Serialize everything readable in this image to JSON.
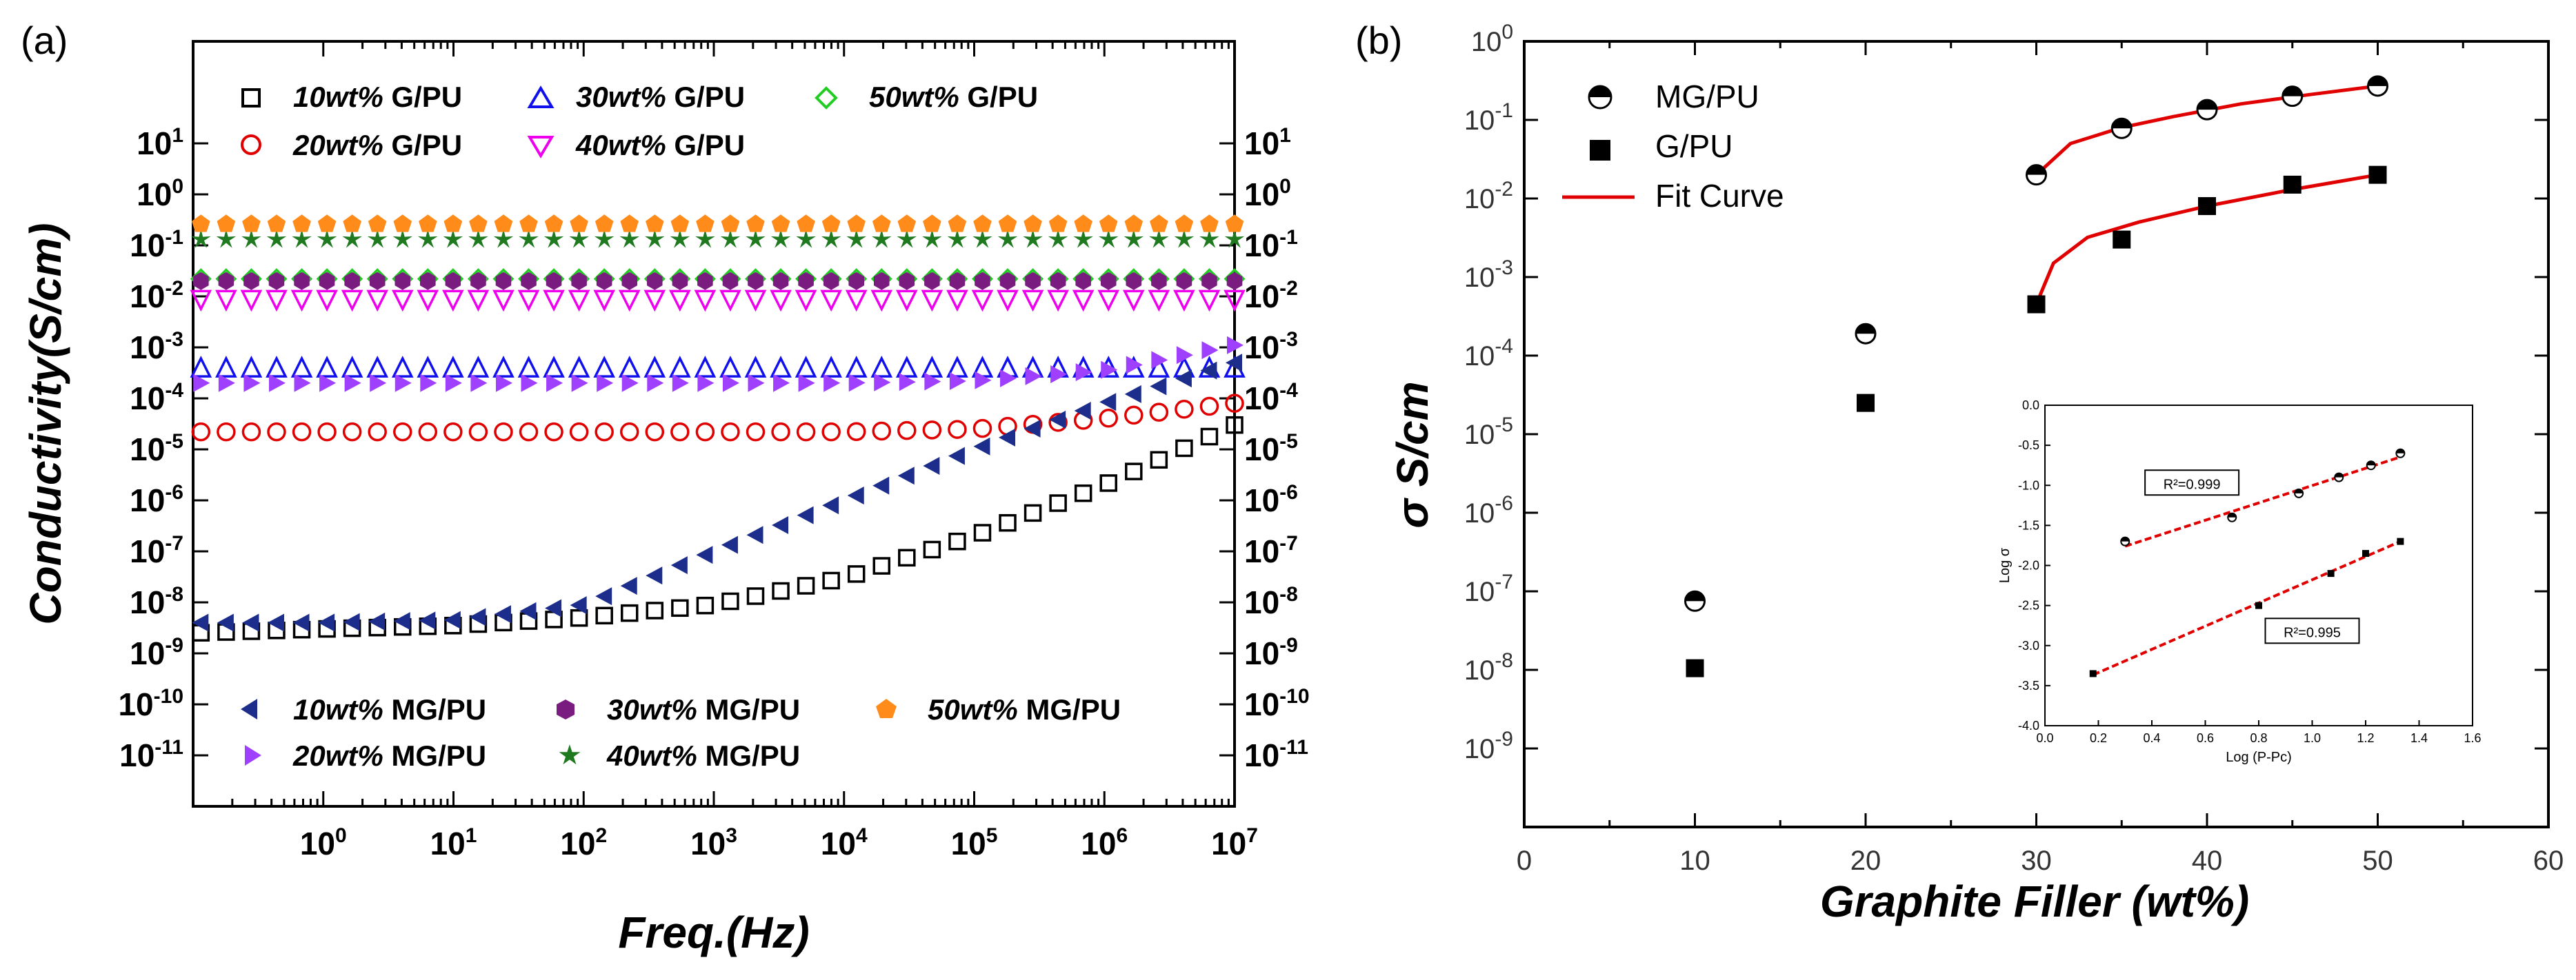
{
  "chart_data": [
    {
      "panel": "(a)",
      "type": "scatter",
      "xlabel": "Freq.(Hz)",
      "ylabel": "Conductivity(S/cm)",
      "xscale": "log",
      "yscale": "log",
      "xlim": [
        0.1,
        10000000
      ],
      "ylim": [
        1e-12,
        1000
      ],
      "xticks": [
        "10^0",
        "10^1",
        "10^2",
        "10^3",
        "10^4",
        "10^5",
        "10^6",
        "10^7"
      ],
      "yticks": [
        "10^-11",
        "10^-10",
        "10^-9",
        "10^-8",
        "10^-7",
        "10^-6",
        "10^-5",
        "10^-4",
        "10^-3",
        "10^-2",
        "10^-1",
        "10^0",
        "10^1"
      ],
      "series": [
        {
          "name": "10wt% G/PU",
          "marker": "open-square",
          "color": "#000000",
          "x": [
            0.1,
            1,
            10,
            100,
            1000,
            10000,
            100000,
            1000000,
            10000000
          ],
          "y": [
            2.5e-09,
            3e-09,
            3.5e-09,
            5e-09,
            9e-09,
            3e-08,
            2e-07,
            2e-06,
            3e-05
          ]
        },
        {
          "name": "20wt% G/PU",
          "marker": "open-circle",
          "color": "#e00000",
          "x": [
            0.1,
            1,
            10,
            100,
            1000,
            10000,
            100000,
            1000000,
            10000000
          ],
          "y": [
            2.2e-05,
            2.2e-05,
            2.2e-05,
            2.2e-05,
            2.2e-05,
            2.2e-05,
            2.5e-05,
            4e-05,
            8e-05
          ]
        },
        {
          "name": "30wt% G/PU",
          "marker": "open-triangle-up",
          "color": "#1010ee",
          "x": [
            0.1,
            1,
            10,
            100,
            1000,
            10000,
            100000,
            1000000,
            10000000
          ],
          "y": [
            0.00038,
            0.00038,
            0.00038,
            0.00038,
            0.00038,
            0.00038,
            0.00038,
            0.00038,
            0.00038
          ]
        },
        {
          "name": "40wt% G/PU",
          "marker": "open-triangle-down",
          "color": "#ee00ee",
          "x": [
            0.1,
            1,
            10,
            100,
            1000,
            10000,
            100000,
            1000000,
            10000000
          ],
          "y": [
            0.009,
            0.009,
            0.009,
            0.009,
            0.009,
            0.009,
            0.009,
            0.009,
            0.009
          ]
        },
        {
          "name": "50wt% G/PU",
          "marker": "open-diamond",
          "color": "#22cc22",
          "x": [
            0.1,
            1,
            10,
            100,
            1000,
            10000,
            100000,
            1000000,
            10000000
          ],
          "y": [
            0.022,
            0.022,
            0.022,
            0.022,
            0.022,
            0.022,
            0.022,
            0.022,
            0.022
          ]
        },
        {
          "name": "10wt% MG/PU",
          "marker": "filled-triangle-left",
          "color": "#1c2d8c",
          "x": [
            0.1,
            1,
            10,
            100,
            1000,
            10000,
            100000,
            1000000,
            10000000
          ],
          "y": [
            4e-09,
            4e-09,
            4.5e-09,
            9e-09,
            1e-07,
            1e-06,
            1e-05,
            8e-05,
            0.0005
          ]
        },
        {
          "name": "20wt% MG/PU",
          "marker": "filled-triangle-right",
          "color": "#a040ff",
          "x": [
            0.1,
            1,
            10,
            100,
            1000,
            10000,
            100000,
            1000000,
            10000000
          ],
          "y": [
            0.0002,
            0.0002,
            0.0002,
            0.0002,
            0.0002,
            0.0002,
            0.00022,
            0.00035,
            0.0011
          ]
        },
        {
          "name": "30wt% MG/PU",
          "marker": "filled-hexagon",
          "color": "#7a1b80",
          "x": [
            0.1,
            1,
            10,
            100,
            1000,
            10000,
            100000,
            1000000,
            10000000
          ],
          "y": [
            0.02,
            0.02,
            0.02,
            0.02,
            0.02,
            0.02,
            0.02,
            0.02,
            0.02
          ]
        },
        {
          "name": "40wt% MG/PU",
          "marker": "filled-star",
          "color": "#1f7a1f",
          "x": [
            0.1,
            1,
            10,
            100,
            1000,
            10000,
            100000,
            1000000,
            10000000
          ],
          "y": [
            0.13,
            0.13,
            0.13,
            0.13,
            0.13,
            0.13,
            0.13,
            0.13,
            0.13
          ]
        },
        {
          "name": "50wt% MG/PU",
          "marker": "filled-pentagon",
          "color": "#ff8c1a",
          "x": [
            0.1,
            1,
            10,
            100,
            1000,
            10000,
            100000,
            1000000,
            10000000
          ],
          "y": [
            0.26,
            0.26,
            0.26,
            0.26,
            0.26,
            0.26,
            0.26,
            0.26,
            0.26
          ]
        }
      ]
    },
    {
      "panel": "(b)",
      "type": "scatter",
      "xlabel": "Graphite Filler (wt%)",
      "ylabel": "σ S/cm",
      "yscale": "log",
      "xlim": [
        0,
        60
      ],
      "ylim": [
        1e-10,
        1
      ],
      "xticks": [
        "0",
        "10",
        "20",
        "30",
        "40",
        "50",
        "60"
      ],
      "yticks": [
        "10^-9",
        "10^-8",
        "10^-7",
        "10^-6",
        "10^-5",
        "10^-4",
        "10^-3",
        "10^-2",
        "10^-1",
        "10^0"
      ],
      "series": [
        {
          "name": "MG/PU",
          "marker": "half-filled-circle",
          "x": [
            10,
            20,
            30,
            35,
            40,
            45,
            50
          ],
          "y": [
            7.5e-08,
            0.00019,
            0.02,
            0.078,
            0.135,
            0.2,
            0.27
          ]
        },
        {
          "name": "G/PU",
          "marker": "filled-square",
          "x": [
            10,
            20,
            30,
            35,
            40,
            45,
            50
          ],
          "y": [
            1.05e-08,
            2.5e-05,
            0.00045,
            0.003,
            0.008,
            0.015,
            0.02
          ]
        },
        {
          "name": "Fit Curve",
          "marker": "line",
          "color": "#e00000",
          "fits": [
            {
              "x": [
                30,
                32,
                35,
                38,
                42,
                46,
                50
              ],
              "y": [
                0.02,
                0.05,
                0.08,
                0.11,
                0.16,
                0.21,
                0.27
              ]
            },
            {
              "x": [
                30,
                31,
                33,
                36,
                40,
                45,
                50
              ],
              "y": [
                0.00045,
                0.0015,
                0.0032,
                0.005,
                0.008,
                0.013,
                0.02
              ]
            }
          ]
        }
      ],
      "inset": {
        "xlabel": "Log (P-Pc)",
        "ylabel": "Log σ",
        "xlim": [
          0.0,
          1.6
        ],
        "ylim": [
          -4.0,
          0.0
        ],
        "xticks": [
          "0.0",
          "0.2",
          "0.4",
          "0.6",
          "0.8",
          "1.0",
          "1.2",
          "1.4",
          "1.6"
        ],
        "yticks": [
          "0.0",
          "-0.5",
          "-1.0",
          "-1.5",
          "-2.0",
          "-2.5",
          "-3.0",
          "-3.5",
          "-4.0"
        ],
        "annotations": [
          {
            "label": "R²=0.999",
            "at": "upper-line"
          },
          {
            "label": "R²=0.995",
            "at": "lower-line"
          }
        ],
        "series": [
          {
            "name": "MG/PU",
            "x": [
              0.3,
              0.7,
              0.95,
              1.1,
              1.22,
              1.33
            ],
            "y": [
              -1.7,
              -1.4,
              -1.1,
              -0.9,
              -0.75,
              -0.6
            ]
          },
          {
            "name": "G/PU",
            "x": [
              0.18,
              0.8,
              1.07,
              1.2,
              1.33
            ],
            "y": [
              -3.35,
              -2.5,
              -2.1,
              -1.85,
              -1.7
            ]
          }
        ]
      }
    }
  ],
  "labels": {
    "panel_a": "(a)",
    "panel_b": "(b)",
    "legend_a_top": [
      {
        "pct": "10wt%",
        "suffix": " G/PU"
      },
      {
        "pct": "30wt%",
        "suffix": " G/PU"
      },
      {
        "pct": "50wt%",
        "suffix": " G/PU"
      },
      {
        "pct": "20wt%",
        "suffix": " G/PU"
      },
      {
        "pct": "40wt%",
        "suffix": " G/PU"
      }
    ],
    "legend_a_bottom": [
      {
        "pct": "10wt%",
        "suffix": " MG/PU"
      },
      {
        "pct": "30wt%",
        "suffix": " MG/PU"
      },
      {
        "pct": "50wt%",
        "suffix": " MG/PU"
      },
      {
        "pct": "20wt%",
        "suffix": " MG/PU"
      },
      {
        "pct": "40wt%",
        "suffix": " MG/PU"
      }
    ],
    "legend_b": [
      "MG/PU",
      "G/PU",
      "Fit Curve"
    ],
    "ylabel_a": "Conductivity(S/cm)",
    "xlabel_a": "Freq.(Hz)",
    "ylabel_b": "σ S/cm",
    "xlabel_b": "Graphite Filler (wt%)"
  }
}
